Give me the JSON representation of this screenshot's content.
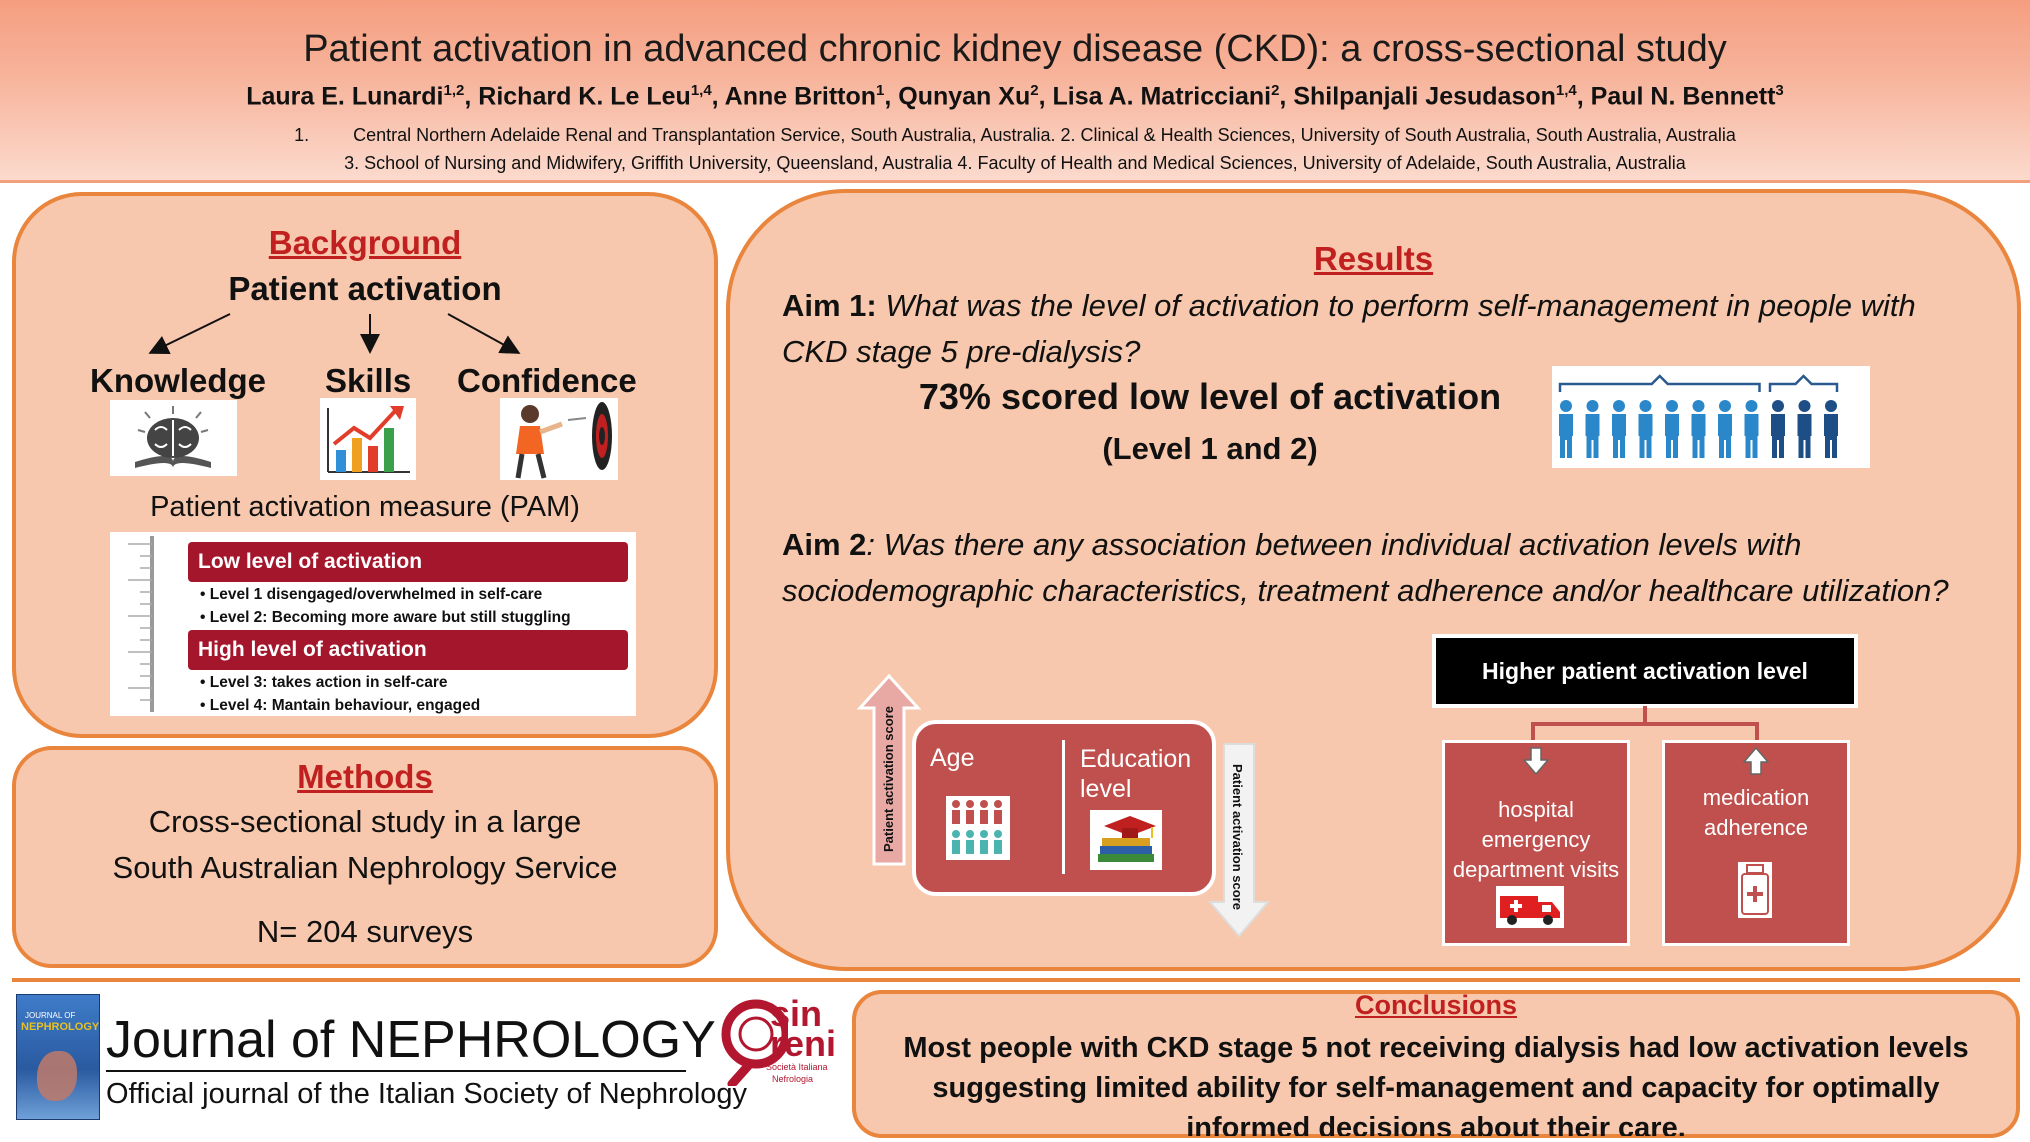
{
  "header": {
    "title": "Patient activation in advanced chronic kidney disease (CKD): a cross-sectional study",
    "authors": [
      {
        "name": "Laura E. Lunardi",
        "sup": "1,2",
        "sep": ", "
      },
      {
        "name": "Richard K. Le Leu",
        "sup": "1,4",
        "sep": ", "
      },
      {
        "name": "Anne Britton",
        "sup": "1",
        "sep": ", "
      },
      {
        "name": "Qunyan Xu",
        "sup": "2",
        "sep": ", "
      },
      {
        "name": "Lisa A. Matricciani",
        "sup": "2",
        "sep": ", "
      },
      {
        "name": "Shilpanjali Jesudason",
        "sup": "1,4",
        "sep": ", "
      },
      {
        "name": "Paul N. Bennett",
        "sup": "3",
        "sep": ""
      }
    ],
    "affiliation_num": "1.",
    "affiliation_line1": "Central Northern  Adelaide Renal and Transplantation Service, South Australia, Australia. 2. Clinical & Health Sciences, University of South Australia, South Australia, Australia",
    "affiliation_line2": "3. School of Nursing and Midwifery, Griffith University, Queensland, Australia 4. Faculty of Health and Medical Sciences, University of Adelaide, South  Australia, Australia"
  },
  "background": {
    "title": "Background",
    "concept": "Patient activation",
    "pillars": [
      "Knowledge",
      "Skills",
      "Confidence"
    ],
    "pam_title": "Patient activation measure (PAM)",
    "low_label": "Low level of activation",
    "low_items": [
      "Level 1 disengaged/overwhelmed in self-care",
      "Level 2: Becoming more aware but still stuggling"
    ],
    "high_label": "High level of activation",
    "high_items": [
      "Level 3: takes action in self-care",
      "Level 4: Mantain behaviour, engaged"
    ]
  },
  "methods": {
    "title": "Methods",
    "line1": "Cross-sectional study in a large",
    "line2": "South Australian Nephrology Service",
    "n": "N= 204 surveys"
  },
  "results": {
    "title": "Results",
    "aim1_label": "Aim 1:",
    "aim1_text": " What was the level of activation to perform self-management  in people with CKD stage 5 pre-dialysis?",
    "stat_main": "73% scored low level of activation",
    "stat_sub": "(Level 1 and 2)",
    "people_total": 11,
    "people_low": 8,
    "aim2_label": "Aim 2",
    "aim2_text": ": Was there any association between individual activation levels with sociodemographic characteristics, treatment adherence and/or healthcare utilization?",
    "arrow_up_label": "Patient   activation   score",
    "arrow_down_label": "Patient  activation  score",
    "age_label": "Age",
    "education_label": "Education level",
    "higher_label": "Higher patient activation level",
    "box1_label": "hospital emergency department visits",
    "box2_label": "medication adherence"
  },
  "footer": {
    "journal_title": "Journal of NEPHROLOGY",
    "journal_subtitle": "Official journal  of the Italian Society of Nephrology",
    "cover_small": "JOURNAL OF",
    "cover_big": "NEPHROLOGY",
    "logo_text1": "sin",
    "logo_text2": "reni",
    "logo_small": "Società Italiana",
    "logo_small2": "Nefrologia"
  },
  "conclusions": {
    "title": "Conclusions",
    "text": "Most people with CKD stage 5 not receiving dialysis had low activation levels suggesting limited ability for self-management and capacity for optimally informed decisions about their care."
  },
  "colors": {
    "accent_orange": "#e9853d",
    "panel_fill": "#f7c8ad",
    "title_red": "#c0201f",
    "bar_red": "#a3162b",
    "box_red": "#c0504d"
  }
}
